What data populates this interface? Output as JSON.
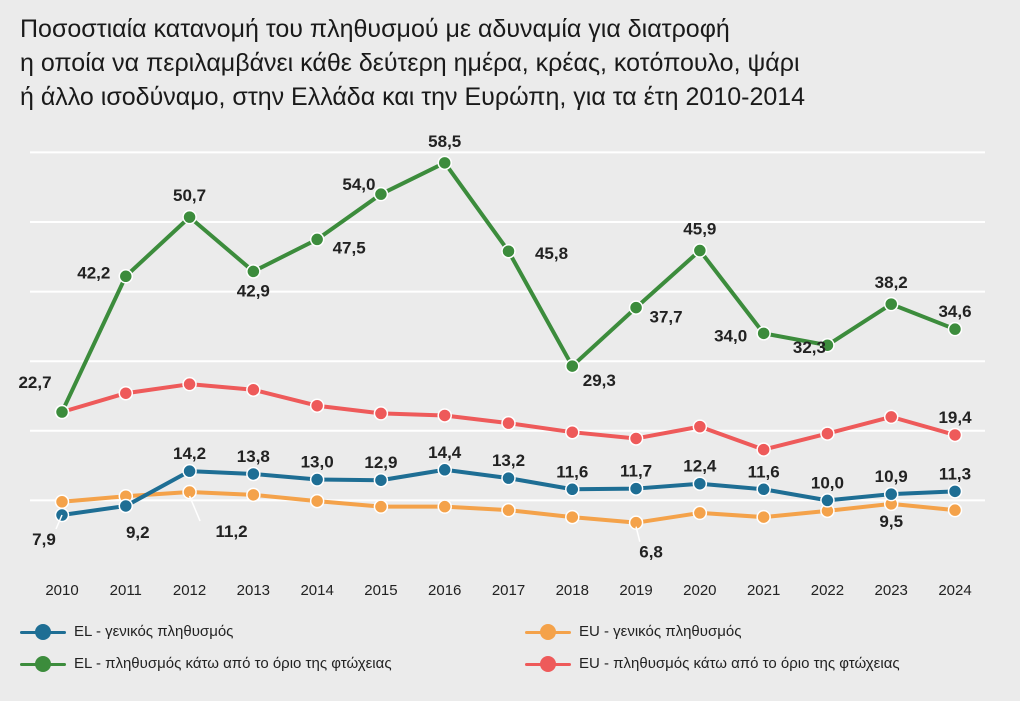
{
  "title": {
    "line1": "Ποσοστιαία κατανομή του πληθυσμού με αδυναμία για διατροφή",
    "line2": "η οποία να περιλαμβάνει κάθε δεύτερη ημέρα, κρέας, κοτόπουλο, ψάρι",
    "line3": "ή άλλο ισοδύναμο, στην Ελλάδα και την Ευρώπη, για τα έτη 2010-2014"
  },
  "chart_data": {
    "type": "line",
    "title": "Ποσοστιαία κατανομή του πληθυσμού με αδυναμία για διατροφή η οποία να περιλαμβάνει κάθε δεύτερη ημέρα, κρέας, κοτόπουλο, ψάρι ή άλλο ισοδύναμο, στην Ελλάδα και την Ευρώπη, για τα έτη 2010-2014",
    "x": [
      "2010",
      "2011",
      "2012",
      "2013",
      "2014",
      "2015",
      "2016",
      "2017",
      "2018",
      "2019",
      "2020",
      "2021",
      "2022",
      "2023",
      "2024"
    ],
    "xlabel": "",
    "ylabel": "",
    "ylim": [
      0,
      60
    ],
    "grid": true,
    "legend": "bottom",
    "series": [
      {
        "name": "EL - γενικός πληθυσμός",
        "color": "#1e6e94",
        "values": [
          7.9,
          9.2,
          14.2,
          13.8,
          13.0,
          12.9,
          14.4,
          13.2,
          11.6,
          11.7,
          12.4,
          11.6,
          10.0,
          10.9,
          11.3
        ],
        "labels": [
          "7,9",
          "9,2",
          "14,2",
          "13,8",
          "13,0",
          "12,9",
          "14,4",
          "13,2",
          "11,6",
          "11,7",
          "12,4",
          "11,6",
          "10,0",
          "10,9",
          "11,3"
        ]
      },
      {
        "name": "EU - γενικός πληθυσμός",
        "color": "#f4a24a",
        "values": [
          9.8,
          10.6,
          11.2,
          10.8,
          9.9,
          9.1,
          9.1,
          8.6,
          7.6,
          6.8,
          8.2,
          7.6,
          8.5,
          9.5,
          8.6
        ],
        "labels": [
          "",
          "",
          "11,2",
          "",
          "",
          "",
          "",
          "",
          "",
          "6,8",
          "",
          "",
          "",
          "9,5",
          ""
        ]
      },
      {
        "name": "EL - πληθυσμός κάτω από το όριο της φτώχειας",
        "color": "#3c8c3c",
        "values": [
          22.7,
          42.2,
          50.7,
          42.9,
          47.5,
          54.0,
          58.5,
          45.8,
          29.3,
          37.7,
          45.9,
          34.0,
          32.3,
          38.2,
          34.6
        ],
        "labels": [
          "22,7",
          "42,2",
          "50,7",
          "42,9",
          "47,5",
          "54,0",
          "58,5",
          "45,8",
          "29,3",
          "37,7",
          "45,9",
          "34,0",
          "32,3",
          "38,2",
          "34,6"
        ]
      },
      {
        "name": "EU - πληθυσμός κάτω από το όριο της φτώχειας",
        "color": "#ee5a5a",
        "values": [
          22.7,
          25.4,
          26.7,
          25.9,
          23.6,
          22.5,
          22.2,
          21.1,
          19.8,
          18.9,
          20.6,
          17.3,
          19.6,
          22.0,
          19.4
        ],
        "labels": [
          "",
          "",
          "",
          "",
          "",
          "",
          "",
          "",
          "",
          "",
          "",
          "",
          "",
          "",
          "19,4"
        ]
      }
    ]
  }
}
